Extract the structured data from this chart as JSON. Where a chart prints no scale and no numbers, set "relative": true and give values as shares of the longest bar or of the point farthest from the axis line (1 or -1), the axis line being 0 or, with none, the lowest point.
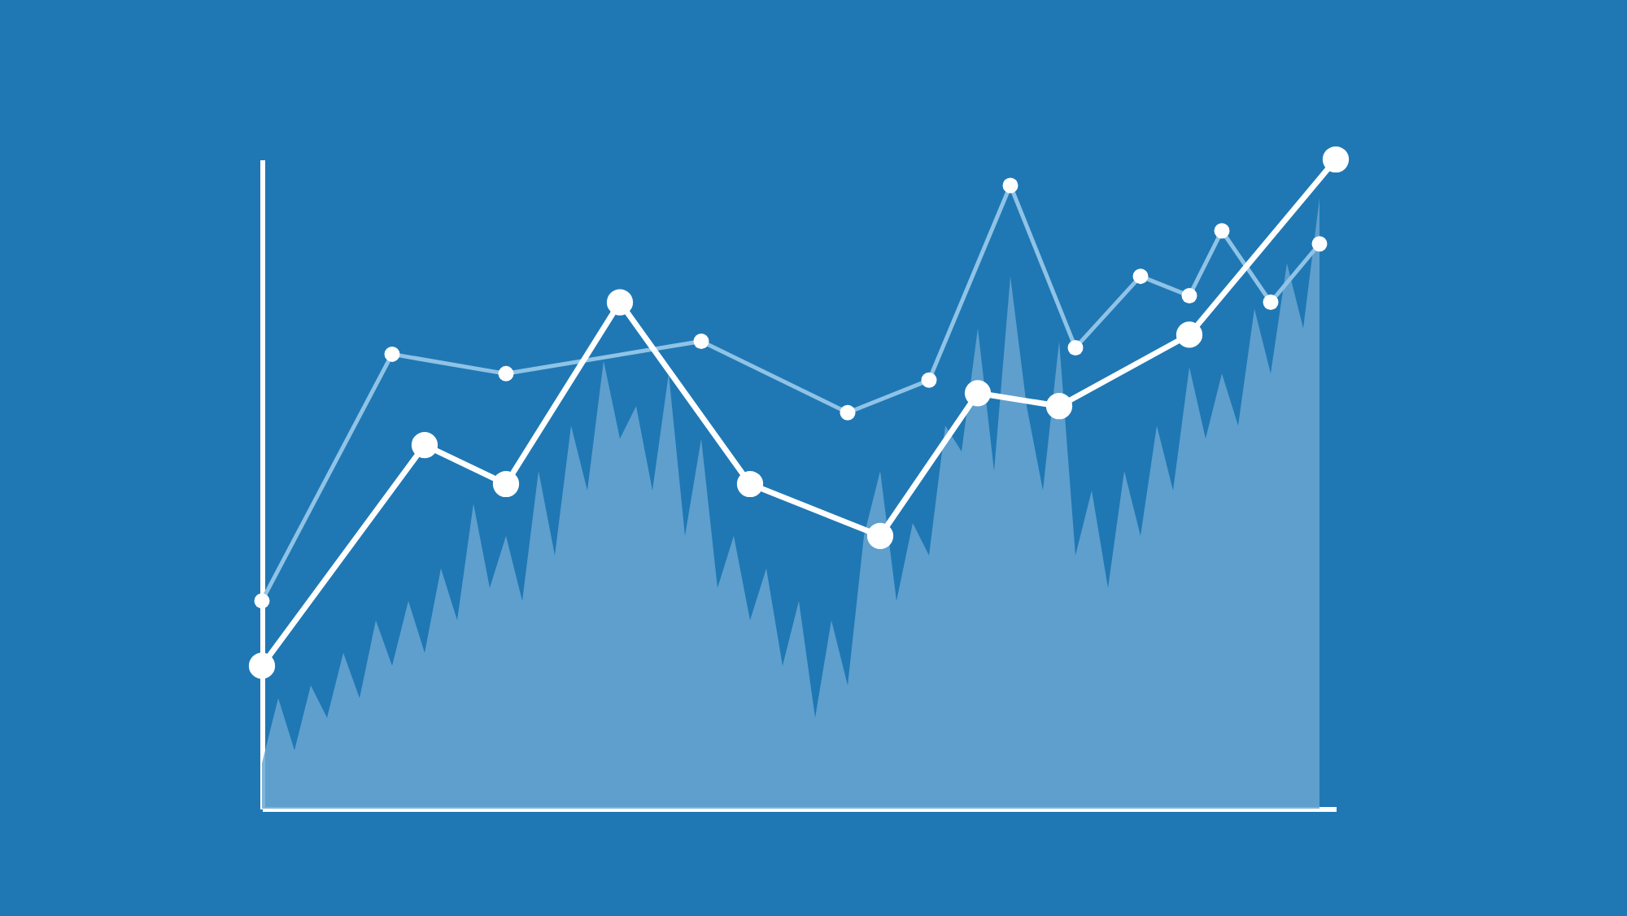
{
  "chart_data": {
    "type": "line",
    "relative": true,
    "tick_labels": false,
    "line_style": "solid",
    "categories": [
      null,
      null,
      null,
      null,
      null,
      null,
      null,
      null,
      null,
      null,
      null,
      null,
      null,
      null,
      null,
      null,
      null,
      null,
      null,
      null,
      null,
      null,
      null,
      null,
      null,
      null,
      null,
      null,
      null,
      null,
      null,
      null,
      null,
      null,
      null,
      null,
      null,
      null,
      null,
      null,
      null,
      null,
      null,
      null,
      null,
      null,
      null,
      null,
      null,
      null,
      null,
      null,
      null,
      null,
      null,
      null,
      null,
      null,
      null,
      null,
      null,
      null,
      null,
      null,
      null,
      null,
      null
    ],
    "series": [
      {
        "type": "area",
        "color": "#6aa6d2",
        "values": [
          0.07,
          0.17,
          0.09,
          0.19,
          0.14,
          0.24,
          0.17,
          0.29,
          0.22,
          0.32,
          0.24,
          0.37,
          0.29,
          0.47,
          0.34,
          0.42,
          0.32,
          0.52,
          0.39,
          0.59,
          0.49,
          0.69,
          0.57,
          0.62,
          0.49,
          0.67,
          0.42,
          0.57,
          0.34,
          0.42,
          0.29,
          0.37,
          0.22,
          0.32,
          0.14,
          0.29,
          0.19,
          0.42,
          0.52,
          0.32,
          0.44,
          0.39,
          0.59,
          0.55,
          0.74,
          0.52,
          0.82,
          0.62,
          0.49,
          0.72,
          0.39,
          0.49,
          0.34,
          0.52,
          0.42,
          0.59,
          0.49,
          0.68,
          0.57,
          0.67,
          0.59,
          0.77,
          0.67,
          0.84,
          0.74,
          0.94,
          null
        ]
      },
      {
        "marker": "circle",
        "color": "#8fc3e6",
        "values": [
          0.32,
          null,
          null,
          null,
          null,
          null,
          null,
          null,
          0.7,
          null,
          null,
          null,
          null,
          null,
          null,
          0.67,
          null,
          null,
          null,
          null,
          null,
          null,
          null,
          null,
          null,
          null,
          null,
          0.72,
          null,
          null,
          null,
          null,
          null,
          null,
          null,
          null,
          0.61,
          null,
          null,
          null,
          null,
          0.66,
          null,
          null,
          null,
          null,
          0.96,
          null,
          null,
          null,
          0.71,
          null,
          null,
          null,
          0.82,
          null,
          null,
          0.79,
          null,
          0.89,
          null,
          null,
          0.78,
          null,
          null,
          0.87,
          null
        ]
      },
      {
        "marker": "circle",
        "color": "#ffffff",
        "values": [
          0.22,
          null,
          null,
          null,
          null,
          null,
          null,
          null,
          null,
          null,
          0.56,
          null,
          null,
          null,
          null,
          0.5,
          null,
          null,
          null,
          null,
          null,
          null,
          0.78,
          null,
          null,
          null,
          null,
          null,
          null,
          null,
          0.5,
          null,
          null,
          null,
          null,
          null,
          null,
          null,
          0.42,
          null,
          null,
          null,
          null,
          null,
          0.64,
          null,
          null,
          null,
          null,
          0.62,
          null,
          null,
          null,
          null,
          null,
          null,
          null,
          0.73,
          null,
          null,
          null,
          null,
          null,
          null,
          null,
          null,
          1
        ]
      }
    ]
  }
}
